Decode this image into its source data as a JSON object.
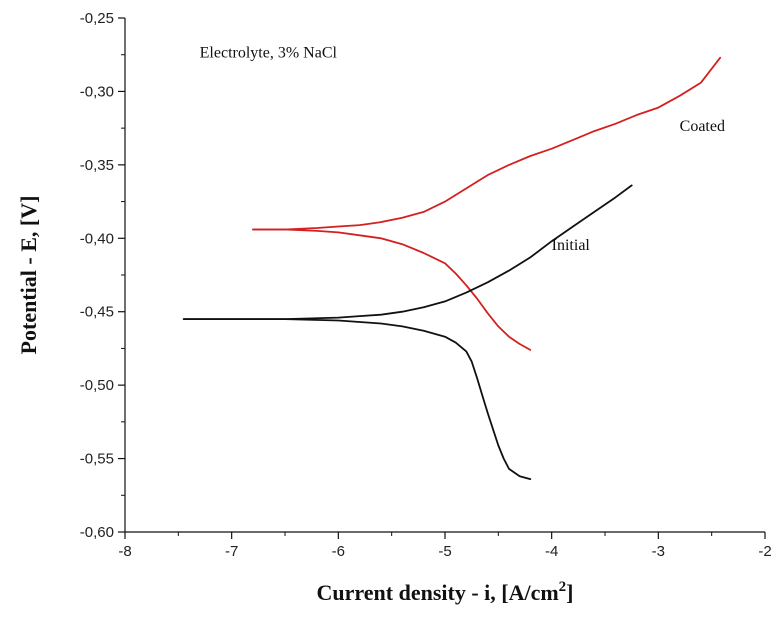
{
  "chart_data": {
    "type": "line",
    "title": "",
    "xlabel": "Current density - i, [A/cm",
    "xlabel_sup": "2",
    "xlabel_end": "]",
    "ylabel": "Potential - E, [V]",
    "xlim": [
      -8,
      -2
    ],
    "ylim": [
      -0.6,
      -0.25
    ],
    "x_ticks": [
      -8,
      -7,
      -6,
      -5,
      -4,
      -3,
      -2
    ],
    "x_tick_labels": [
      "-8",
      "-7",
      "-6",
      "-5",
      "-4",
      "-3",
      "-2"
    ],
    "y_ticks": [
      -0.6,
      -0.55,
      -0.5,
      -0.45,
      -0.4,
      -0.35,
      -0.3,
      -0.25
    ],
    "y_tick_labels": [
      "-0,60",
      "-0,55",
      "-0,50",
      "-0,45",
      "-0,40",
      "-0,35",
      "-0,30",
      "-0,25"
    ],
    "grid": false,
    "legend": "none",
    "annotations": [
      {
        "text": "Electrolyte, 3% NaCl",
        "x": -7.3,
        "y": -0.277
      },
      {
        "text": "Coated",
        "x": -2.8,
        "y": -0.327
      },
      {
        "text": "Initial",
        "x": -4.0,
        "y": -0.408
      }
    ],
    "series": [
      {
        "color": "#d42020",
        "anodic": [
          [
            -6.8,
            -0.394
          ],
          [
            -6.5,
            -0.394
          ],
          [
            -6.2,
            -0.393
          ],
          [
            -6.0,
            -0.392
          ],
          [
            -5.8,
            -0.391
          ],
          [
            -5.6,
            -0.389
          ],
          [
            -5.4,
            -0.386
          ],
          [
            -5.2,
            -0.382
          ],
          [
            -5.0,
            -0.375
          ],
          [
            -4.8,
            -0.366
          ],
          [
            -4.6,
            -0.357
          ],
          [
            -4.4,
            -0.35
          ],
          [
            -4.2,
            -0.344
          ],
          [
            -4.0,
            -0.339
          ],
          [
            -3.8,
            -0.333
          ],
          [
            -3.6,
            -0.327
          ],
          [
            -3.4,
            -0.322
          ],
          [
            -3.2,
            -0.316
          ],
          [
            -3.0,
            -0.311
          ],
          [
            -2.8,
            -0.303
          ],
          [
            -2.6,
            -0.294
          ],
          [
            -2.42,
            -0.277
          ]
        ],
        "cathodic": [
          [
            -6.8,
            -0.394
          ],
          [
            -6.5,
            -0.394
          ],
          [
            -6.2,
            -0.395
          ],
          [
            -6.0,
            -0.396
          ],
          [
            -5.8,
            -0.398
          ],
          [
            -5.6,
            -0.4
          ],
          [
            -5.4,
            -0.404
          ],
          [
            -5.2,
            -0.41
          ],
          [
            -5.0,
            -0.417
          ],
          [
            -4.9,
            -0.424
          ],
          [
            -4.8,
            -0.432
          ],
          [
            -4.7,
            -0.441
          ],
          [
            -4.6,
            -0.451
          ],
          [
            -4.5,
            -0.46
          ],
          [
            -4.4,
            -0.467
          ],
          [
            -4.3,
            -0.472
          ],
          [
            -4.2,
            -0.476
          ]
        ]
      },
      {
        "color": "#111111",
        "anodic": [
          [
            -7.45,
            -0.455
          ],
          [
            -7.0,
            -0.455
          ],
          [
            -6.5,
            -0.455
          ],
          [
            -6.0,
            -0.454
          ],
          [
            -5.8,
            -0.453
          ],
          [
            -5.6,
            -0.452
          ],
          [
            -5.4,
            -0.45
          ],
          [
            -5.2,
            -0.447
          ],
          [
            -5.0,
            -0.443
          ],
          [
            -4.8,
            -0.437
          ],
          [
            -4.6,
            -0.43
          ],
          [
            -4.4,
            -0.422
          ],
          [
            -4.2,
            -0.413
          ],
          [
            -4.0,
            -0.402
          ],
          [
            -3.8,
            -0.392
          ],
          [
            -3.6,
            -0.382
          ],
          [
            -3.4,
            -0.372
          ],
          [
            -3.25,
            -0.364
          ]
        ],
        "cathodic": [
          [
            -7.45,
            -0.455
          ],
          [
            -7.0,
            -0.455
          ],
          [
            -6.5,
            -0.455
          ],
          [
            -6.0,
            -0.456
          ],
          [
            -5.8,
            -0.457
          ],
          [
            -5.6,
            -0.458
          ],
          [
            -5.4,
            -0.46
          ],
          [
            -5.2,
            -0.463
          ],
          [
            -5.0,
            -0.467
          ],
          [
            -4.9,
            -0.471
          ],
          [
            -4.8,
            -0.477
          ],
          [
            -4.75,
            -0.484
          ],
          [
            -4.7,
            -0.495
          ],
          [
            -4.65,
            -0.507
          ],
          [
            -4.6,
            -0.519
          ],
          [
            -4.55,
            -0.53
          ],
          [
            -4.5,
            -0.541
          ],
          [
            -4.45,
            -0.55
          ],
          [
            -4.4,
            -0.557
          ],
          [
            -4.3,
            -0.562
          ],
          [
            -4.2,
            -0.564
          ]
        ]
      }
    ]
  }
}
